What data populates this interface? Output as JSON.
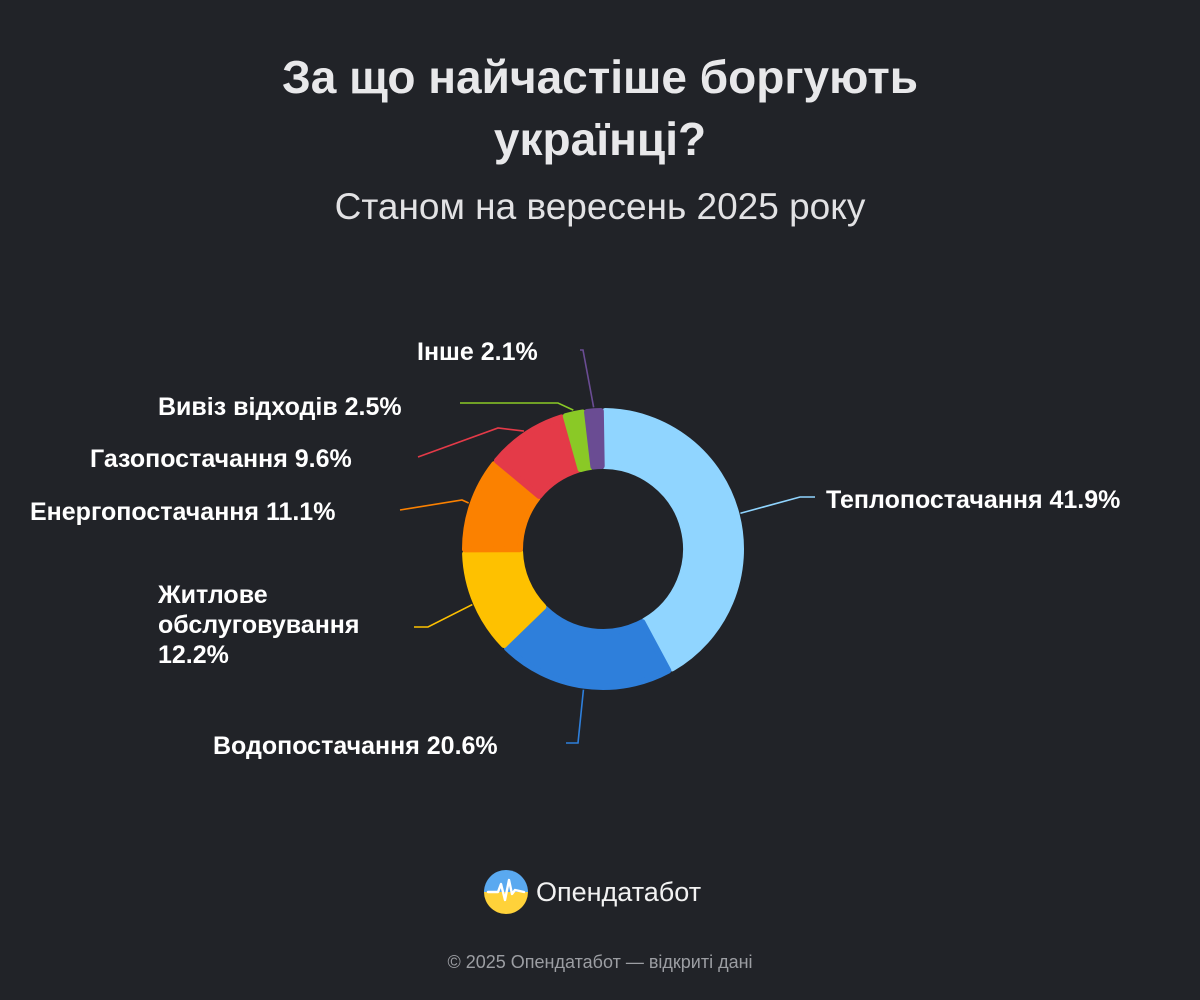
{
  "title_lines": [
    "За що найчастіше боргують",
    "українці?"
  ],
  "subtitle": "Станом на вересень 2025 року",
  "chart_data": {
    "type": "pie",
    "variant": "donut",
    "slices": [
      {
        "label": "Теплопостачання",
        "value": 41.9,
        "value_label": "41.9%",
        "color": "#90d5ff"
      },
      {
        "label": "Водопостачання",
        "value": 20.6,
        "value_label": "20.6%",
        "color": "#2e7fdb"
      },
      {
        "label": "Житлове обслуговування",
        "value": 12.2,
        "value_label": "12.2%",
        "color": "#fec100"
      },
      {
        "label": "Енергопостачання",
        "value": 11.1,
        "value_label": "11.1%",
        "color": "#fb8100"
      },
      {
        "label": "Газопостачання",
        "value": 9.6,
        "value_label": "9.6%",
        "color": "#e43a48"
      },
      {
        "label": "Вивіз відходів",
        "value": 2.5,
        "value_label": "2.5%",
        "color": "#8ac926"
      },
      {
        "label": "Інше",
        "value": 2.1,
        "value_label": "2.1%",
        "color": "#6a4c93"
      }
    ],
    "legend": "none",
    "labels": "outside-with-leader-lines"
  },
  "brand": {
    "name": "Опендатабот",
    "logo_icon": "opendatabot-logo-icon"
  },
  "footer": "© 2025 Опендатабот — відкриті дані"
}
